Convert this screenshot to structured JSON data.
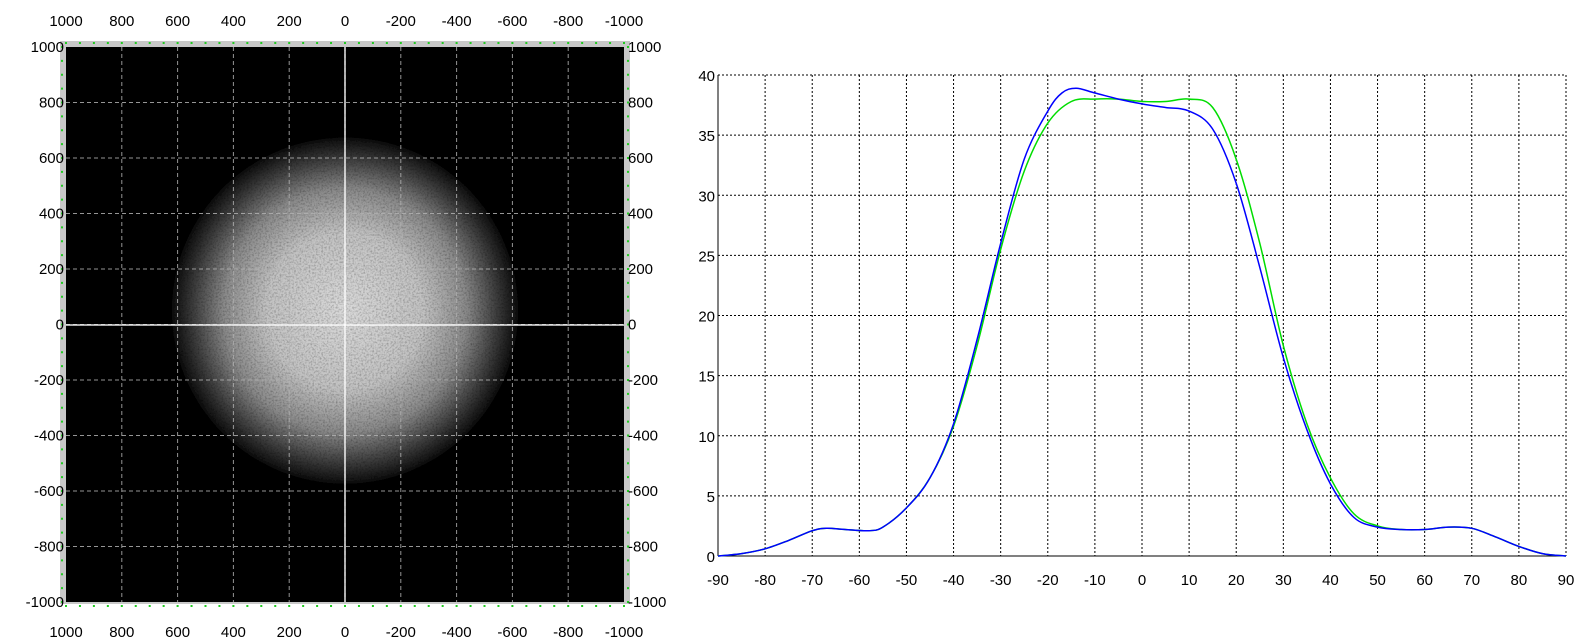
{
  "chart_data": [
    {
      "type": "heatmap",
      "x_ticks_top": [
        "1000",
        "800",
        "600",
        "400",
        "200",
        "0",
        "-200",
        "-400",
        "-600",
        "-800",
        "-1000"
      ],
      "x_ticks_bottom": [
        "1000",
        "800",
        "600",
        "400",
        "200",
        "0",
        "-200",
        "-400",
        "-600",
        "-800",
        "-1000"
      ],
      "y_ticks_left": [
        "1000",
        "800",
        "600",
        "400",
        "200",
        "0",
        "-200",
        "-400",
        "-600",
        "-800",
        "-1000"
      ],
      "y_ticks_right": [
        "1000",
        "800",
        "600",
        "400",
        "200",
        "0",
        "-200",
        "-400",
        "-600",
        "-800",
        "-1000"
      ],
      "xlim": [
        1000,
        -1000
      ],
      "ylim": [
        -1000,
        1000
      ],
      "grid": true,
      "colormap": "grayscale",
      "spot": {
        "center_x": 0,
        "center_y": 50,
        "radius": 620
      }
    },
    {
      "type": "line",
      "xlim": [
        -90,
        90
      ],
      "ylim": [
        0,
        40
      ],
      "grid": true,
      "x_ticks": [
        "-90",
        "-80",
        "-70",
        "-60",
        "-50",
        "-40",
        "-30",
        "-20",
        "-10",
        "0",
        "10",
        "20",
        "30",
        "40",
        "50",
        "60",
        "70",
        "80",
        "90"
      ],
      "y_ticks": [
        "0",
        "5",
        "10",
        "15",
        "20",
        "25",
        "30",
        "35",
        "40"
      ],
      "series": [
        {
          "color": "#0000ff",
          "x": [
            -90,
            -85,
            -80,
            -75,
            -70,
            -67,
            -63,
            -58,
            -55,
            -50,
            -45,
            -40,
            -35,
            -30,
            -25,
            -20,
            -17,
            -14,
            -10,
            -5,
            0,
            5,
            10,
            15,
            20,
            25,
            30,
            35,
            40,
            45,
            50,
            55,
            60,
            65,
            70,
            75,
            80,
            85,
            90
          ],
          "y": [
            0,
            0.2,
            0.6,
            1.3,
            2.1,
            2.3,
            2.2,
            2.1,
            2.4,
            4,
            6.5,
            11,
            18,
            26,
            33,
            37,
            38.5,
            38.9,
            38.5,
            38,
            37.6,
            37.3,
            37,
            35.5,
            31,
            24,
            16.5,
            10.5,
            6,
            3.2,
            2.4,
            2.2,
            2.2,
            2.4,
            2.3,
            1.6,
            0.8,
            0.2,
            0
          ]
        },
        {
          "color": "#00dd00",
          "x": [
            -90,
            -85,
            -80,
            -75,
            -70,
            -67,
            -63,
            -58,
            -55,
            -50,
            -45,
            -40,
            -35,
            -30,
            -25,
            -20,
            -15,
            -10,
            -5,
            0,
            5,
            10,
            15,
            20,
            25,
            30,
            35,
            40,
            45,
            50,
            55,
            60,
            65,
            70,
            75,
            80,
            85,
            90
          ],
          "y": [
            0,
            0.2,
            0.6,
            1.3,
            2.1,
            2.3,
            2.2,
            2.1,
            2.4,
            4,
            6.5,
            10.8,
            17.5,
            25.5,
            32,
            36,
            37.8,
            38,
            38,
            37.8,
            37.8,
            38,
            37.3,
            33,
            26,
            17.5,
            11,
            6.5,
            3.5,
            2.5,
            2.2,
            2.2,
            2.4,
            2.3,
            1.6,
            0.8,
            0.2,
            0
          ]
        }
      ]
    }
  ]
}
